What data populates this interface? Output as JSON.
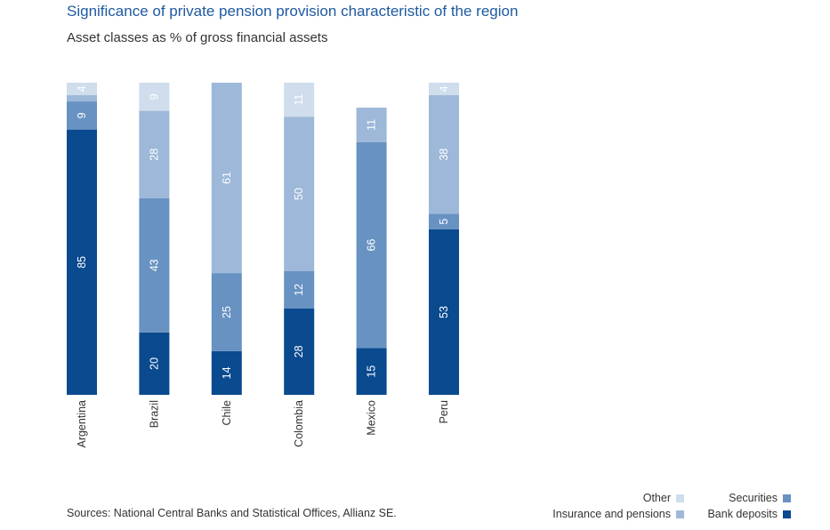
{
  "title": "Significance of private pension provision characteristic of the region",
  "subtitle": "Asset classes as % of gross financial assets",
  "source": "Sources: National Central Banks and Statistical Offices, Allianz SE.",
  "colors": {
    "bank_deposits": "#0a4a8f",
    "securities": "#6792c2",
    "insurance_pensions": "#9db8d8",
    "other": "#cfdded"
  },
  "legend": [
    {
      "key": "other",
      "label": "Other"
    },
    {
      "key": "securities",
      "label": "Securities"
    },
    {
      "key": "insurance_pensions",
      "label": "Insurance and pensions"
    },
    {
      "key": "bank_deposits",
      "label": "Bank deposits"
    }
  ],
  "chart_data": {
    "type": "bar",
    "stacked": true,
    "orientation": "vertical",
    "categories": [
      "Argentina",
      "Brazil",
      "Chile",
      "Colombia",
      "Mexico",
      "Peru"
    ],
    "ylim": [
      0,
      100
    ],
    "grid": false,
    "legend_position": "bottom-right",
    "series": [
      {
        "name": "Bank deposits",
        "key": "bank_deposits",
        "values": [
          85,
          20,
          14,
          28,
          15,
          53
        ]
      },
      {
        "name": "Securities",
        "key": "securities",
        "values": [
          9,
          43,
          25,
          12,
          66,
          5
        ]
      },
      {
        "name": "Insurance and pensions",
        "key": "insurance_pensions",
        "values": [
          2,
          28,
          61,
          50,
          11,
          38
        ]
      },
      {
        "name": "Other",
        "key": "other",
        "values": [
          4,
          9,
          0,
          11,
          0,
          4
        ]
      }
    ],
    "labeled_values": [
      [
        "85",
        "9",
        "",
        "4"
      ],
      [
        "20",
        "43",
        "28",
        "9"
      ],
      [
        "14",
        "25",
        "61",
        ""
      ],
      [
        "28",
        "12",
        "50",
        "11"
      ],
      [
        "15",
        "66",
        "11",
        ""
      ],
      [
        "53",
        "5",
        "38",
        "4"
      ]
    ]
  }
}
